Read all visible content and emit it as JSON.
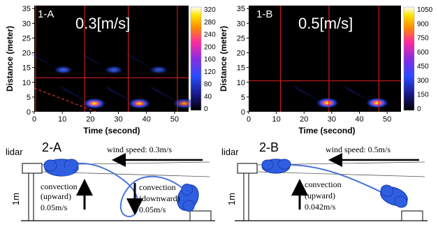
{
  "colors": {
    "heat_stops": [
      "#000000",
      "#1a1a8c",
      "#2a4cff",
      "#8a2be2",
      "#ff2aa0",
      "#ff8a00",
      "#ffe400",
      "#ffffff"
    ],
    "grid_line": "#c81e1e",
    "cloud_fill": "#2f5fe0",
    "cloud_stroke": "#1b3fb0",
    "path_stroke": "#4a73d8",
    "arrow": "#000000"
  },
  "heatmaps": [
    {
      "id": "1-A",
      "panel_label": "1-A",
      "speed_label": "0.3[m/s]",
      "ylabel": "Distance (meter)",
      "xlabel": "Time (second)",
      "xticks": [
        "0",
        "10",
        "20",
        "30",
        "40",
        "50"
      ],
      "yticks": [
        "0",
        "5",
        "10",
        "15",
        "20",
        "25",
        "30",
        "35"
      ],
      "colorbar_ticks": [
        "0",
        "40",
        "80",
        "120",
        "160",
        "200",
        "240",
        "280",
        "320"
      ],
      "xlim": [
        0,
        55
      ],
      "ylim": [
        0,
        36
      ],
      "hline": 11.5,
      "vlines": [
        0.5,
        18,
        33.5,
        51
      ],
      "dashed_line": {
        "from": [
          0,
          8
        ],
        "to": [
          22,
          0
        ]
      },
      "blobs": [
        {
          "t": 10,
          "d": 14.2,
          "i": 0.85
        },
        {
          "t": 28,
          "d": 14.2,
          "i": 0.8
        },
        {
          "t": 44,
          "d": 14.2,
          "i": 0.75
        },
        {
          "t": 21,
          "d": 2.8,
          "i": 1.0
        },
        {
          "t": 37,
          "d": 2.8,
          "i": 0.9
        },
        {
          "t": 53,
          "d": 2.8,
          "i": 0.75
        }
      ]
    },
    {
      "id": "1-B",
      "panel_label": "1-B",
      "speed_label": "0.5[m/s]",
      "ylabel": "Distance (meter)",
      "xlabel": "Time (second)",
      "xticks": [
        "0",
        "10",
        "20",
        "30",
        "40",
        "50"
      ],
      "yticks": [
        "0",
        "5",
        "10",
        "15",
        "20",
        "25",
        "30",
        "35"
      ],
      "colorbar_ticks": [
        "0",
        "150",
        "300",
        "450",
        "600",
        "750",
        "900",
        "1050"
      ],
      "xlim": [
        0,
        55
      ],
      "ylim": [
        0,
        36
      ],
      "hline": 10.5,
      "vlines": [
        11.5,
        29,
        47
      ],
      "dashed_line": null,
      "blobs": [
        {
          "t": 28,
          "d": 3.0,
          "i": 1.0
        },
        {
          "t": 46,
          "d": 3.0,
          "i": 1.0
        }
      ]
    }
  ],
  "diagrams": [
    {
      "id": "2-A",
      "panel_label": "2-A",
      "lidar_label": "lidar",
      "height_label": "1m",
      "wind_label": "wind speed: 0.3m/s",
      "convection_up": [
        "convection",
        "(upward)",
        "0.05m/s"
      ],
      "convection_down": [
        "convection",
        "(downward)",
        "0.05m/s"
      ]
    },
    {
      "id": "2-B",
      "panel_label": "2-B",
      "lidar_label": "lidar",
      "height_label": "1m",
      "wind_label": "wind speed: 0.5m/s",
      "convection_up": [
        "convection",
        "(upward)",
        "0.042m/s"
      ]
    }
  ]
}
